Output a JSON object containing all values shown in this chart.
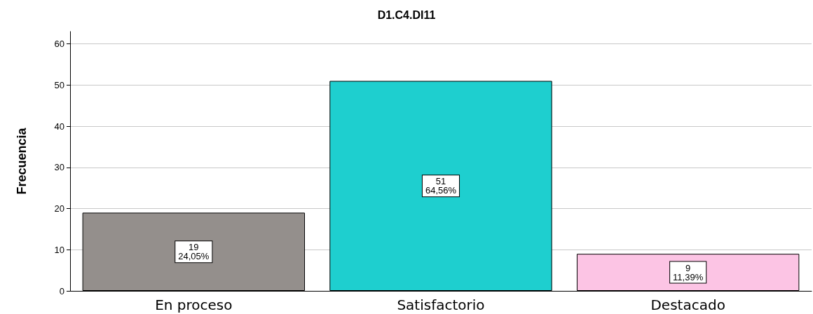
{
  "chart_data": {
    "type": "bar",
    "title": "D1.C4.DI11",
    "ylabel": "Frecuencia",
    "categories": [
      "En proceso",
      "Satisfactorio",
      "Destacado"
    ],
    "values": [
      19,
      51,
      9
    ],
    "colors": [
      "#948f8c",
      "#1ecfcf",
      "#fcc4e4"
    ],
    "value_labels": [
      "19\n24,05%",
      "51\n64,56%",
      "9\n11,39%"
    ],
    "ylim": [
      0,
      63
    ],
    "yticks": [
      0,
      10,
      20,
      30,
      40,
      50,
      60
    ],
    "grid": "y"
  }
}
